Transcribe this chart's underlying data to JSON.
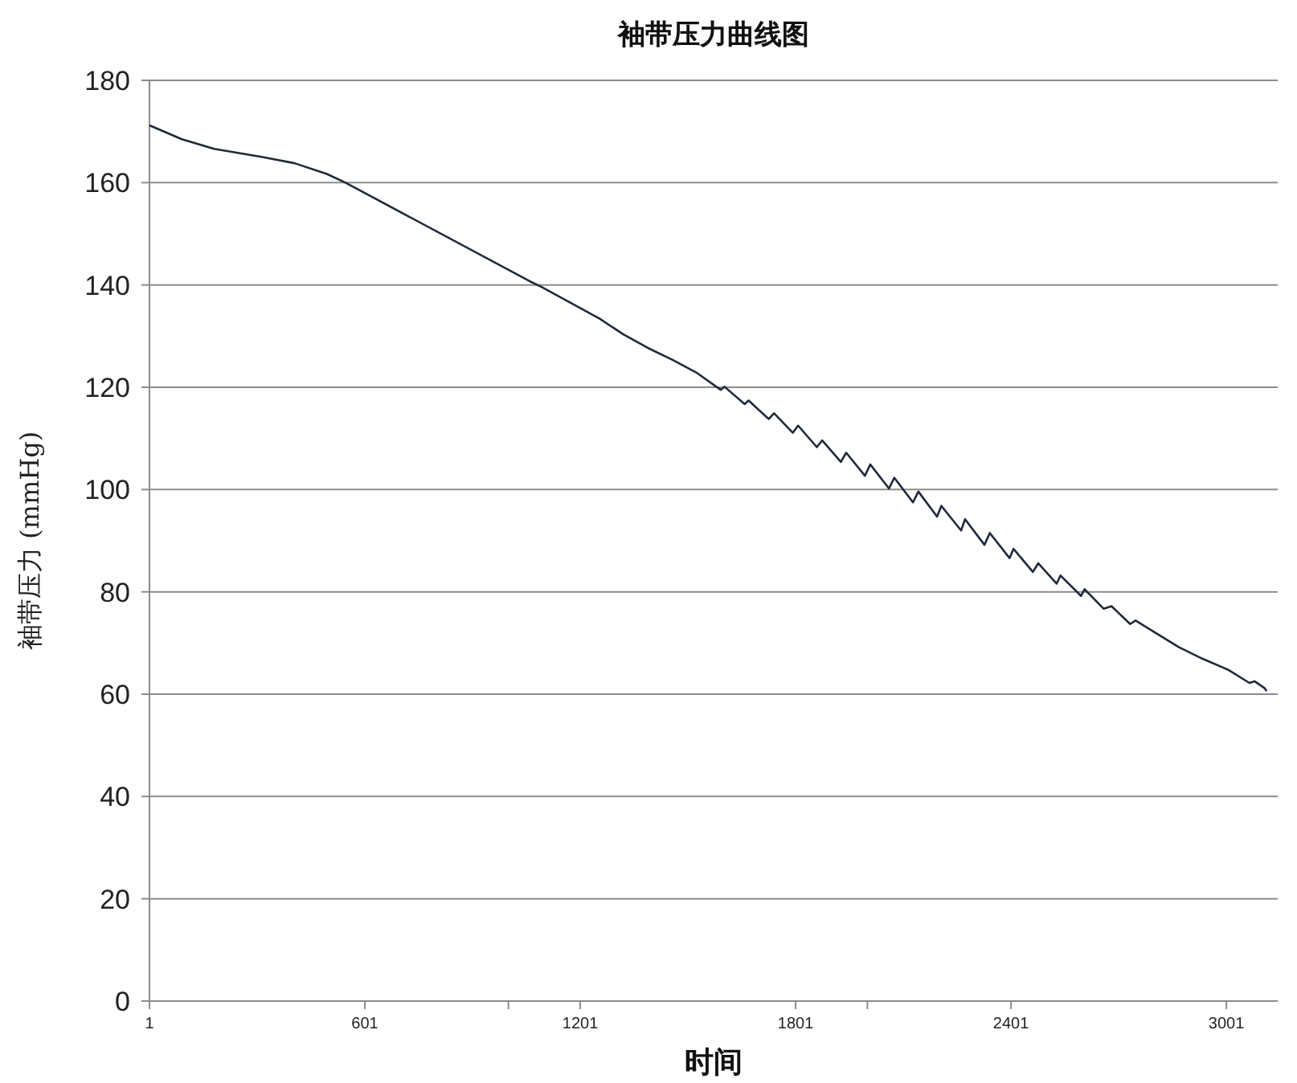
{
  "chart_data": {
    "type": "line",
    "title": "袖带压力曲线图",
    "xlabel": "时间",
    "ylabel": "袖带压力 (mmHg)",
    "xlim": [
      1,
      3144
    ],
    "ylim": [
      0,
      180
    ],
    "xticks": [
      1,
      {
        "value": 601,
        "label": "601"
      },
      {
        "value": 1001,
        "label": null
      },
      {
        "value": 1201,
        "label": "1201"
      },
      {
        "value": 1801,
        "label": "1801"
      },
      {
        "value": 2001,
        "label": null
      },
      {
        "value": 2401,
        "label": "2401"
      },
      {
        "value": 3001,
        "label": "3001"
      }
    ],
    "yticks": [
      0,
      20,
      40,
      60,
      80,
      100,
      120,
      140,
      160,
      180
    ],
    "grid": "y",
    "marker": "none",
    "line_style": "solid",
    "series": [
      {
        "color": "#1f2a3a",
        "x": [
          1,
          91,
          181,
          316,
          405,
          495,
          547,
          1061,
          1091,
          1255,
          1322,
          1389,
          1457,
          1524,
          1592,
          1603,
          1659,
          1670,
          1726,
          1741,
          1793,
          1808,
          1860,
          1875,
          1927,
          1942,
          1994,
          2009,
          2061,
          2076,
          2128,
          2143,
          2195,
          2207,
          2262,
          2273,
          2327,
          2342,
          2397,
          2408,
          2462,
          2477,
          2528,
          2539,
          2596,
          2606,
          2659,
          2681,
          2733,
          2748,
          2868,
          2935,
          3005,
          3065,
          3080,
          3107,
          3113
        ],
        "values": [
          171.2,
          168.5,
          166.6,
          165.0,
          163.8,
          161.7,
          160.0,
          140.7,
          139.7,
          133.4,
          130.3,
          127.7,
          125.4,
          122.9,
          119.5,
          120.1,
          116.7,
          117.4,
          113.8,
          114.9,
          111.1,
          112.5,
          108.3,
          109.6,
          105.4,
          107.2,
          102.7,
          104.9,
          100.2,
          102.3,
          97.5,
          99.6,
          94.7,
          96.8,
          92.0,
          94.2,
          89.2,
          91.5,
          86.6,
          88.4,
          83.9,
          85.6,
          81.6,
          83.2,
          79.2,
          80.5,
          76.7,
          77.2,
          73.7,
          74.4,
          69.2,
          66.9,
          64.8,
          62.2,
          62.5,
          61.2,
          60.6
        ]
      }
    ]
  }
}
